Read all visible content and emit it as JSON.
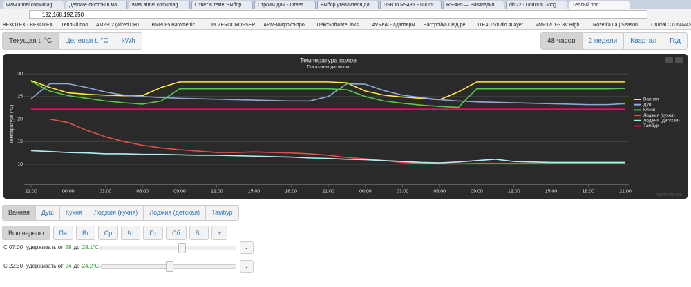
{
  "browser": {
    "tabs": [
      "www.atmel.com/Imag",
      "Детские люстры в ма",
      "www.atmel.com/Imag",
      "Ответ в теме 'Выбор",
      "Строим Дом - Ответ",
      "Выбор утеплителя дл",
      "USB to RS485 FTDI Int",
      "RS-485 — Википедия",
      "dht22 - Поиск в Goog",
      "Тёплый пол"
    ],
    "address": "192.168.192.250",
    "bookmarks": [
      "BEKOTEX - BEKOTEX",
      "Тёплый пол",
      "AM2302 (wired DHT...",
      "BMP085 Barometric ...",
      "DIY ZEROCROSSER",
      "ARM-микроконтро...",
      "DekoSoftwareLinks ...",
      "AVReAl - адаптеры",
      "Настройка ПИД ре...",
      "ITEAD Studio 4Layer...",
      "VMP3201-3.3V High ...",
      "Rozetka.ua | Seasoni...",
      "Crucial CT064M4SS..."
    ]
  },
  "toolbar": {
    "metrics": [
      "Текущая t, °C",
      "Целевая t, °C",
      "kWh"
    ],
    "periods": [
      "48 часов",
      "2 недели",
      "Квартал",
      "Год"
    ]
  },
  "chart_data": {
    "type": "line",
    "title": "Температура полов",
    "subtitle": "Показания датчиков",
    "y_label": "Температура (°C)",
    "credits": "Highcharts.com",
    "grid": true,
    "xlim": [
      0,
      48
    ],
    "ylim": [
      5.5,
      32
    ],
    "yticks": [
      10,
      15,
      20,
      25,
      30
    ],
    "xticks": [
      {
        "value": 0,
        "label": "21:00"
      },
      {
        "value": 3,
        "label": "00:00"
      },
      {
        "value": 6,
        "label": "03:00"
      },
      {
        "value": 9,
        "label": "06:00"
      },
      {
        "value": 12,
        "label": "09:00"
      },
      {
        "value": 15,
        "label": "12:00"
      },
      {
        "value": 18,
        "label": "15:00"
      },
      {
        "value": 21,
        "label": "18:00"
      },
      {
        "value": 24,
        "label": "21:00"
      },
      {
        "value": 27,
        "label": "00:00"
      },
      {
        "value": 30,
        "label": "03:00"
      },
      {
        "value": 33,
        "label": "06:00"
      },
      {
        "value": 36,
        "label": "09:00"
      },
      {
        "value": 39,
        "label": "12:00"
      },
      {
        "value": 42,
        "label": "15:00"
      },
      {
        "value": 45,
        "label": "18:00"
      },
      {
        "value": 48,
        "label": "21:00"
      }
    ],
    "x": [
      0,
      1.5,
      3,
      4.5,
      6,
      7.5,
      9,
      10.5,
      12,
      13.5,
      15,
      16.5,
      18,
      19.5,
      21,
      22.5,
      24,
      25.5,
      27,
      28.5,
      30,
      31.5,
      33,
      34.5,
      36,
      37.5,
      39,
      40.5,
      42,
      43.5,
      45,
      46.5,
      48
    ],
    "series": [
      {
        "name": "Ванная",
        "color": "#ffee33",
        "values": [
          28.5,
          27,
          25.8,
          25.5,
          25.3,
          25.2,
          25.2,
          27,
          28.2,
          28.2,
          28.2,
          28.2,
          28.2,
          28.2,
          28.2,
          28.2,
          28.2,
          28,
          26.2,
          25.3,
          24.9,
          24.6,
          24.3,
          26,
          28.2,
          28.2,
          28.2,
          28.2,
          28.2,
          28.2,
          28.2,
          28.2,
          28.2
        ]
      },
      {
        "name": "Душ",
        "color": "#8fa8d8",
        "values": [
          24.5,
          27.8,
          27.8,
          27,
          26,
          25.3,
          25,
          24.8,
          24.6,
          24.5,
          24.4,
          24.3,
          24.2,
          24.1,
          24,
          24,
          25,
          27.8,
          27.7,
          26.3,
          25.3,
          24.8,
          24.3,
          24,
          23.8,
          23.7,
          23.6,
          23.5,
          23.4,
          23.3,
          23.2,
          23.2,
          23.4
        ]
      },
      {
        "name": "Кухня",
        "color": "#55cc44",
        "values": [
          28.3,
          26.2,
          25.2,
          24.6,
          24,
          23.6,
          23.3,
          24,
          26.7,
          26.7,
          26.7,
          26.7,
          26.7,
          26.7,
          26.7,
          26.7,
          26.7,
          26.5,
          25,
          24,
          23.5,
          23.1,
          22.8,
          22.6,
          26.7,
          26.7,
          26.7,
          26.7,
          26.7,
          26.7,
          26.7,
          26.7,
          26.8
        ]
      },
      {
        "name": "Лоджия (кухня)",
        "color": "#e0504a",
        "values": [
          null,
          20,
          19.2,
          17.5,
          16.1,
          15,
          14.2,
          13.6,
          13.2,
          12.9,
          12.6,
          12.6,
          12.7,
          12.6,
          12.5,
          12.3,
          12,
          11.5,
          11.2,
          10.8,
          10.4,
          10.2,
          10.1,
          10.1,
          10.2,
          10.2,
          10.2,
          10.2,
          10.2,
          10.2,
          10.2,
          10.2,
          10.2
        ]
      },
      {
        "name": "Лоджия (детская)",
        "color": "#b0f0f0",
        "values": [
          13,
          12.8,
          12.6,
          12.5,
          12.3,
          12.3,
          12.2,
          12.2,
          12.1,
          12,
          12,
          11.9,
          11.8,
          11.7,
          11.6,
          11.4,
          11.3,
          11.1,
          11,
          10.8,
          10.6,
          10.4,
          10.3,
          10.5,
          10.8,
          11.1,
          10.6,
          10.5,
          10.4,
          10.4,
          10.4,
          10.4,
          10.4
        ]
      },
      {
        "name": "Тамбур",
        "color": "#ff0066",
        "values": [
          22.2,
          22.2,
          22.2,
          22.2,
          22.2,
          22.2,
          22.2,
          22.2,
          22.2,
          22.2,
          22.2,
          22.2,
          22.2,
          22.2,
          22.2,
          22.2,
          22.2,
          22.2,
          22.2,
          22.2,
          22.2,
          22.2,
          22.2,
          22.2,
          22.2,
          22.2,
          22.2,
          22.2,
          22.2,
          22.2,
          22.2,
          22.2,
          22.2
        ]
      }
    ]
  },
  "rooms": [
    "Ванная",
    "Душ",
    "Кухня",
    "Лоджия (кухня)",
    "Лоджия (детская)",
    "Тамбур"
  ],
  "days": [
    "Всю неделю",
    "Пн",
    "Вт",
    "Ср",
    "Чт",
    "Пт",
    "Сб",
    "Вс",
    "+"
  ],
  "schedule": [
    {
      "time": "С 07:00",
      "hold": "удерживать от",
      "from": "28",
      "to_word": "до",
      "to": "28.1°C",
      "remove": "-"
    },
    {
      "time": "С 22:30",
      "hold": "удерживать от",
      "from": "24",
      "to_word": "до",
      "to": "24.2°C",
      "remove": "-"
    }
  ]
}
